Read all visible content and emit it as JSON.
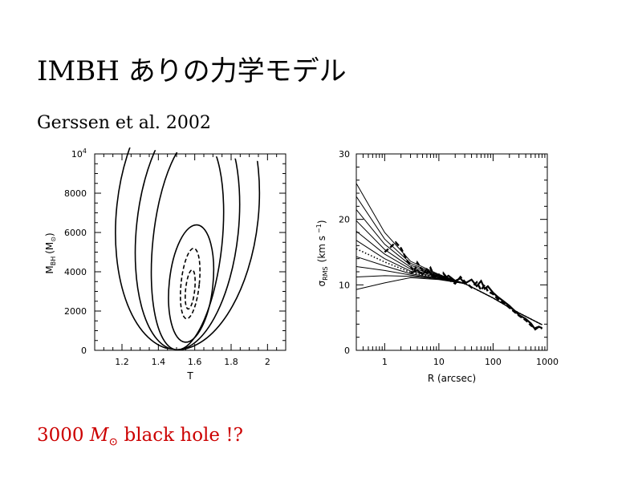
{
  "slide": {
    "title": "IMBH ありの力学モデル",
    "subtitle": "Gerssen et al. 2002",
    "footer_number": "3000",
    "footer_symbol": "M",
    "footer_sub": "⊙",
    "footer_rest": "black hole !?",
    "footer_color": "#cc0000"
  },
  "chart_data": [
    {
      "type": "contour",
      "xlabel": "T",
      "ylabel_main": "M",
      "ylabel_sub": "BH",
      "ylabel_unit_open": "(M",
      "ylabel_unit_sub": "⊙",
      "ylabel_unit_close": ")",
      "xlim": [
        1.05,
        2.1
      ],
      "ylim": [
        0,
        10000
      ],
      "x_ticks": [
        {
          "v": 1.2,
          "label": "1.2"
        },
        {
          "v": 1.4,
          "label": "1.4"
        },
        {
          "v": 1.6,
          "label": "1.6"
        },
        {
          "v": 1.8,
          "label": "1.8"
        },
        {
          "v": 2.0,
          "label": "2"
        }
      ],
      "y_ticks": [
        {
          "v": 0,
          "label": "0"
        },
        {
          "v": 2000,
          "label": "2000"
        },
        {
          "v": 4000,
          "label": "4000"
        },
        {
          "v": 6000,
          "label": "6000"
        },
        {
          "v": 8000,
          "label": "8000"
        }
      ],
      "y_top_label": {
        "v": 10000,
        "base": "10",
        "exp": "4"
      },
      "best_fit": {
        "T": 1.58,
        "M_BH": 3000
      },
      "contours": [
        {
          "level": "1",
          "style": "dashed",
          "center": [
            1.575,
            3100
          ],
          "half_width": 0.025,
          "half_height": 1000
        },
        {
          "level": "2",
          "style": "dashed",
          "center": [
            1.575,
            3400
          ],
          "half_width": 0.05,
          "half_height": 1800
        },
        {
          "level": "3",
          "style": "solid",
          "center": [
            1.58,
            3400
          ],
          "half_width": 0.12,
          "half_height": 3000
        },
        {
          "level": "4",
          "style": "solid",
          "center": [
            1.56,
            5500
          ],
          "half_width": 0.19,
          "half_height": 5500
        },
        {
          "level": "5",
          "style": "solid",
          "center": [
            1.56,
            6200
          ],
          "half_width": 0.28,
          "half_height": 6200
        },
        {
          "level": "6",
          "style": "solid",
          "center": [
            1.56,
            7000
          ],
          "half_width": 0.39,
          "half_height": 7000
        }
      ]
    },
    {
      "type": "line",
      "xlabel": "R (arcsec)",
      "ylabel_main": "σ",
      "ylabel_sub": "RMS",
      "ylabel_unit": "(km s",
      "ylabel_exp": "−1",
      "ylabel_close": ")",
      "x_scale": "log",
      "xlim": [
        0.3,
        1000
      ],
      "ylim": [
        0,
        30
      ],
      "x_ticks": [
        {
          "v": 1,
          "label": "1"
        },
        {
          "v": 10,
          "label": "10"
        },
        {
          "v": 100,
          "label": "100"
        },
        {
          "v": 1000,
          "label": "1000"
        }
      ],
      "y_ticks": [
        {
          "v": 0,
          "label": "0"
        },
        {
          "v": 10,
          "label": "10"
        },
        {
          "v": 20,
          "label": "20"
        },
        {
          "v": 30,
          "label": "30"
        }
      ],
      "models": [
        {
          "style": "solid",
          "x": [
            0.3,
            1,
            3,
            10,
            30,
            100,
            300,
            800
          ],
          "y": [
            25.5,
            18,
            13.6,
            11.6,
            10.2,
            8.0,
            5.7,
            3.9
          ]
        },
        {
          "style": "solid",
          "x": [
            0.3,
            1,
            3,
            10,
            30,
            100,
            300,
            800
          ],
          "y": [
            23.5,
            17,
            13.3,
            11.5,
            10.2,
            8.0,
            5.7,
            3.9
          ]
        },
        {
          "style": "solid",
          "x": [
            0.3,
            1,
            3,
            10,
            30,
            100,
            300,
            800
          ],
          "y": [
            21.5,
            16.2,
            13,
            11.4,
            10.2,
            8.0,
            5.7,
            3.9
          ]
        },
        {
          "style": "solid",
          "x": [
            0.3,
            1,
            3,
            10,
            30,
            100,
            300,
            800
          ],
          "y": [
            19.8,
            15.4,
            12.7,
            11.3,
            10.2,
            8.0,
            5.7,
            3.9
          ]
        },
        {
          "style": "solid",
          "x": [
            0.3,
            1,
            3,
            10,
            30,
            100,
            300,
            800
          ],
          "y": [
            18.2,
            14.7,
            12.4,
            11.2,
            10.2,
            8.0,
            5.7,
            3.9
          ]
        },
        {
          "style": "solid",
          "x": [
            0.3,
            1,
            3,
            10,
            30,
            100,
            300,
            800
          ],
          "y": [
            16.8,
            14.0,
            12.1,
            11.1,
            10.2,
            8.0,
            5.7,
            3.9
          ]
        },
        {
          "style": "dotted",
          "x": [
            0.3,
            1,
            3,
            10,
            30,
            100,
            300,
            800
          ],
          "y": [
            15.5,
            13.5,
            11.9,
            11.0,
            10.2,
            8.0,
            5.7,
            3.9
          ]
        },
        {
          "style": "solid",
          "x": [
            0.3,
            1,
            3,
            10,
            30,
            100,
            300,
            800
          ],
          "y": [
            14.3,
            12.9,
            11.7,
            11.0,
            10.2,
            8.0,
            5.7,
            3.9
          ]
        },
        {
          "style": "solid",
          "x": [
            0.3,
            1,
            3,
            10,
            30,
            100,
            300,
            800
          ],
          "y": [
            12.8,
            12.2,
            11.5,
            10.9,
            10.2,
            8.0,
            5.7,
            3.9
          ]
        },
        {
          "style": "solid",
          "x": [
            0.3,
            1,
            3,
            10,
            30,
            100,
            300,
            800
          ],
          "y": [
            11.2,
            11.4,
            11.3,
            10.9,
            10.2,
            8.0,
            5.7,
            3.9
          ]
        },
        {
          "style": "solid",
          "x": [
            0.3,
            1,
            3,
            10,
            30,
            100,
            300,
            800
          ],
          "y": [
            9.3,
            10.3,
            11.1,
            10.8,
            10.2,
            8.0,
            5.7,
            3.9
          ]
        }
      ],
      "observed_dashed": {
        "x": [
          1.0,
          1.3,
          1.6,
          2.0,
          2.5,
          3.0,
          3.5,
          4.0,
          5.0,
          6.0,
          7.0,
          8.0,
          10,
          12,
          15,
          20,
          25,
          30,
          40,
          50,
          60,
          70,
          80,
          100,
          120,
          150,
          200,
          300,
          400,
          500,
          600,
          700,
          800
        ],
        "y": [
          15.0,
          15.8,
          16.5,
          15.6,
          14.0,
          12.8,
          12.0,
          13.4,
          12.2,
          11.8,
          12.6,
          11.5,
          11.0,
          11.8,
          10.8,
          10.2,
          11.2,
          10.5,
          9.6,
          10.4,
          9.2,
          10.0,
          9.0,
          8.6,
          7.9,
          7.4,
          6.5,
          5.3,
          4.6,
          3.8,
          3.4,
          3.6,
          3.3
        ]
      },
      "observed_solid": {
        "x": [
          3.0,
          4.0,
          5.0,
          6.0,
          8.0,
          10,
          12,
          15,
          20,
          25,
          30,
          40,
          50,
          60,
          70,
          80,
          100,
          120,
          150,
          200,
          300,
          400,
          500,
          600,
          700,
          800
        ],
        "y": [
          11.8,
          12.2,
          11.6,
          12.4,
          11.2,
          11.6,
          10.8,
          11.4,
          10.6,
          11.0,
          10.2,
          10.8,
          9.8,
          10.6,
          9.4,
          9.8,
          8.8,
          8.2,
          7.6,
          6.8,
          5.4,
          4.8,
          4.1,
          3.2,
          3.6,
          3.4
        ]
      }
    }
  ]
}
